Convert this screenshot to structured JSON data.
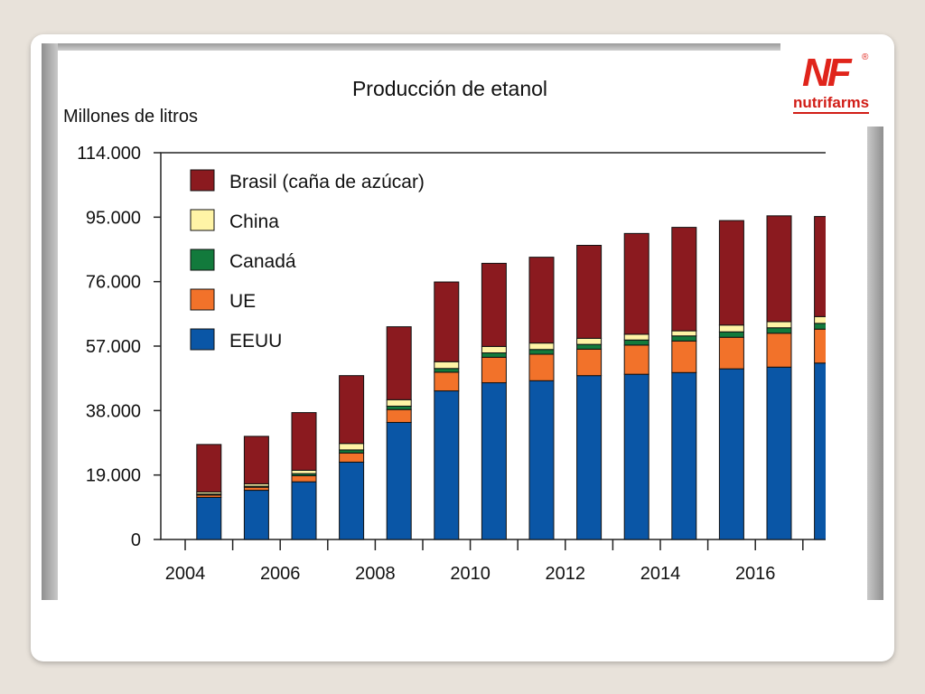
{
  "logo": {
    "mark": "NF",
    "registered": "®",
    "brand": "nutrifarms"
  },
  "chart_data": {
    "type": "bar",
    "stacked": true,
    "title": "Producción de etanol",
    "ylabel": "Millones de litros",
    "ylim": [
      0,
      114000
    ],
    "yticks": [
      0,
      19000,
      38000,
      57000,
      76000,
      95000,
      114000
    ],
    "ytick_labels": [
      "0",
      "19.000",
      "38.000",
      "57.000",
      "76.000",
      "95.000",
      "114.000"
    ],
    "xtick_labels": [
      "2004",
      "2006",
      "2008",
      "2010",
      "2012",
      "2014",
      "2016"
    ],
    "categories": [
      "2004",
      "2005",
      "2006",
      "2007",
      "2008",
      "2009",
      "2010",
      "2011",
      "2012",
      "2013",
      "2014",
      "2015",
      "2016",
      "2017"
    ],
    "legend_position": "top-left",
    "series": [
      {
        "name": "EEUU",
        "color": "#0a56a6",
        "values": [
          12400,
          14500,
          17000,
          22800,
          34500,
          43800,
          46200,
          46800,
          48300,
          48700,
          49200,
          50300,
          50800,
          52000
        ]
      },
      {
        "name": "UE",
        "color": "#f2722a",
        "values": [
          700,
          900,
          1800,
          2700,
          3800,
          5500,
          7500,
          7800,
          7800,
          8600,
          9300,
          9300,
          10000,
          10000
        ]
      },
      {
        "name": "Canadá",
        "color": "#127a3c",
        "values": [
          300,
          300,
          600,
          900,
          1000,
          1100,
          1300,
          1400,
          1400,
          1500,
          1500,
          1600,
          1600,
          1700
        ]
      },
      {
        "name": "China",
        "color": "#fff4a6",
        "values": [
          600,
          700,
          1000,
          1900,
          1900,
          2000,
          1900,
          1900,
          1800,
          1700,
          1500,
          2000,
          1800,
          2000
        ]
      },
      {
        "name": "Brasil (caña de azúcar)",
        "color": "#8b1a1f",
        "values": [
          14000,
          14000,
          17000,
          20000,
          21500,
          23500,
          24500,
          25300,
          27400,
          29700,
          30500,
          30800,
          31200,
          29500
        ]
      }
    ]
  }
}
